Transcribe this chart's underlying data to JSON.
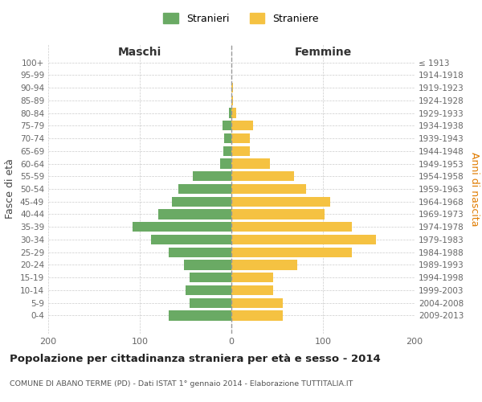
{
  "age_groups": [
    "100+",
    "95-99",
    "90-94",
    "85-89",
    "80-84",
    "75-79",
    "70-74",
    "65-69",
    "60-64",
    "55-59",
    "50-54",
    "45-49",
    "40-44",
    "35-39",
    "30-34",
    "25-29",
    "20-24",
    "15-19",
    "10-14",
    "5-9",
    "0-4"
  ],
  "birth_years": [
    "≤ 1913",
    "1914-1918",
    "1919-1923",
    "1924-1928",
    "1929-1933",
    "1934-1938",
    "1939-1943",
    "1944-1948",
    "1949-1953",
    "1954-1958",
    "1959-1963",
    "1964-1968",
    "1969-1973",
    "1974-1978",
    "1979-1983",
    "1984-1988",
    "1989-1993",
    "1994-1998",
    "1999-2003",
    "2004-2008",
    "2009-2013"
  ],
  "males": [
    0,
    0,
    0,
    0,
    3,
    10,
    8,
    9,
    12,
    42,
    58,
    65,
    80,
    108,
    88,
    68,
    52,
    46,
    50,
    46,
    68
  ],
  "females": [
    0,
    0,
    2,
    2,
    5,
    24,
    20,
    20,
    42,
    68,
    82,
    108,
    102,
    132,
    158,
    132,
    72,
    46,
    46,
    56,
    56
  ],
  "male_color": "#6aaa64",
  "female_color": "#f5c242",
  "background_color": "#ffffff",
  "grid_color": "#cccccc",
  "title": "Popolazione per cittadinanza straniera per età e sesso - 2014",
  "subtitle": "COMUNE DI ABANO TERME (PD) - Dati ISTAT 1° gennaio 2014 - Elaborazione TUTTITALIA.IT",
  "xlabel_left": "Maschi",
  "xlabel_right": "Femmine",
  "ylabel_left": "Fasce di età",
  "ylabel_right": "Anni di nascita",
  "xlim": 200,
  "legend_stranieri": "Stranieri",
  "legend_straniere": "Straniere"
}
